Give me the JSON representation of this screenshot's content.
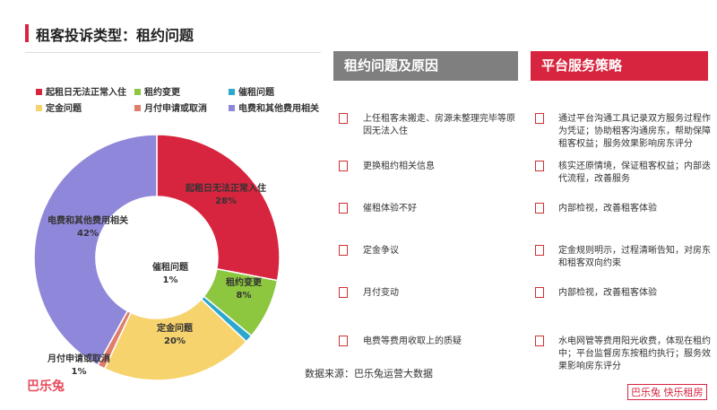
{
  "title": "租客投诉类型：租约问题",
  "chart_data": {
    "type": "pie",
    "donut": true,
    "categories": [
      "起租日无法正常入住",
      "租约变更",
      "催租问题",
      "定金问题",
      "月付申请或取消",
      "电费和其他费用相关"
    ],
    "values": [
      28,
      8,
      1,
      20,
      1,
      42
    ],
    "value_labels": [
      "28%",
      "8%",
      "1%",
      "20%",
      "1%",
      "42%"
    ],
    "colors": [
      "#d8253f",
      "#8dc63f",
      "#2ea7cc",
      "#f7d36e",
      "#e07e6c",
      "#8f87d9"
    ]
  },
  "columns": [
    {
      "header": "租约问题及原因",
      "items": [
        "上任租客未搬走、房源未整理完毕等原因无法入住",
        "更换租约相关信息",
        "催租体验不好",
        "定金争议",
        "月付变动",
        "电费等费用收取上的质疑"
      ]
    },
    {
      "header": "平台服务策略",
      "items": [
        "通过平台沟通工具记录双方服务过程作为凭证；协助租客沟通房东，帮助保障租客权益；服务效果影响房东评分",
        "核实还原情境，保证租客权益；内部迭代流程，改善服务",
        "内部检视，改善租客体验",
        "定金规则明示，过程清晰告知，对房东和租客双向约束",
        "内部检视，改善租客体验",
        "水电网管等费用阳光收费，体现在租约中；平台监督房东按租约执行；服务效果影响房东评分"
      ]
    }
  ],
  "source": "数据来源：巴乐兔运营大数据",
  "logo_left": "巴乐兔",
  "logo_right": "巴乐兔 快乐租房"
}
